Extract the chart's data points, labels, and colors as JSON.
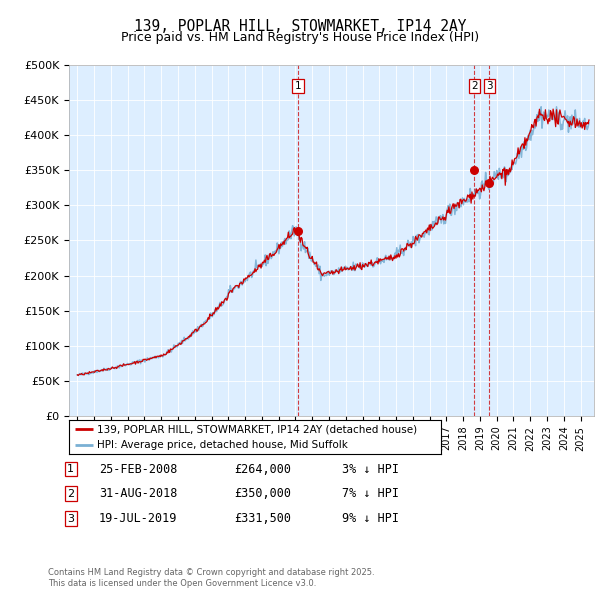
{
  "title": "139, POPLAR HILL, STOWMARKET, IP14 2AY",
  "subtitle": "Price paid vs. HM Land Registry's House Price Index (HPI)",
  "line1_label": "139, POPLAR HILL, STOWMARKET, IP14 2AY (detached house)",
  "line2_label": "HPI: Average price, detached house, Mid Suffolk",
  "line1_color": "#cc0000",
  "line2_color": "#7ab0d4",
  "plot_bg_color": "#ddeeff",
  "sale_color": "#cc0000",
  "ylim": [
    0,
    500000
  ],
  "yticks": [
    0,
    50000,
    100000,
    150000,
    200000,
    250000,
    300000,
    350000,
    400000,
    450000,
    500000
  ],
  "ytick_labels": [
    "£0",
    "£50K",
    "£100K",
    "£150K",
    "£200K",
    "£250K",
    "£300K",
    "£350K",
    "£400K",
    "£450K",
    "£500K"
  ],
  "sales": [
    {
      "date_num": 2008.15,
      "price": 264000,
      "label": "1"
    },
    {
      "date_num": 2018.67,
      "price": 350000,
      "label": "2"
    },
    {
      "date_num": 2019.55,
      "price": 331500,
      "label": "3"
    }
  ],
  "sale_table": [
    {
      "num": "1",
      "date": "25-FEB-2008",
      "price": "£264,000",
      "pct": "3% ↓ HPI"
    },
    {
      "num": "2",
      "date": "31-AUG-2018",
      "price": "£350,000",
      "pct": "7% ↓ HPI"
    },
    {
      "num": "3",
      "date": "19-JUL-2019",
      "price": "£331,500",
      "pct": "9% ↓ HPI"
    }
  ],
  "footer": "Contains HM Land Registry data © Crown copyright and database right 2025.\nThis data is licensed under the Open Government Licence v3.0.",
  "xmin": 1994.5,
  "xmax": 2025.8
}
